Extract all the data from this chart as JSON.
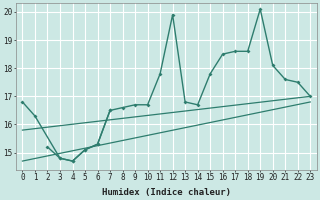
{
  "xlabel": "Humidex (Indice chaleur)",
  "bg_color": "#cce8e4",
  "grid_color": "#ffffff",
  "line_color": "#2e7d6e",
  "x_ticks": [
    0,
    1,
    2,
    3,
    4,
    5,
    6,
    7,
    8,
    9,
    10,
    11,
    12,
    13,
    14,
    15,
    16,
    17,
    18,
    19,
    20,
    21,
    22,
    23
  ],
  "xlim": [
    -0.5,
    23.5
  ],
  "ylim": [
    14.4,
    20.3
  ],
  "y_ticks": [
    15,
    16,
    17,
    18,
    19,
    20
  ],
  "series1_x": [
    0,
    1,
    3,
    4,
    5,
    6,
    7,
    8,
    9,
    10,
    11,
    12,
    13,
    14,
    15,
    16,
    17,
    18,
    19,
    20,
    21,
    22,
    23
  ],
  "series1_y": [
    16.8,
    16.3,
    14.8,
    14.7,
    15.1,
    15.3,
    16.5,
    16.6,
    16.7,
    16.7,
    17.8,
    19.9,
    16.8,
    16.7,
    17.8,
    18.5,
    18.6,
    18.6,
    20.1,
    18.1,
    17.6,
    17.5,
    17.0
  ],
  "series2_x": [
    2,
    3,
    4,
    5,
    6,
    7
  ],
  "series2_y": [
    15.2,
    14.8,
    14.7,
    15.1,
    15.3,
    16.5
  ],
  "line1_x": [
    0,
    23
  ],
  "line1_y": [
    15.8,
    17.0
  ],
  "line2_x": [
    0,
    23
  ],
  "line2_y": [
    14.7,
    16.8
  ]
}
